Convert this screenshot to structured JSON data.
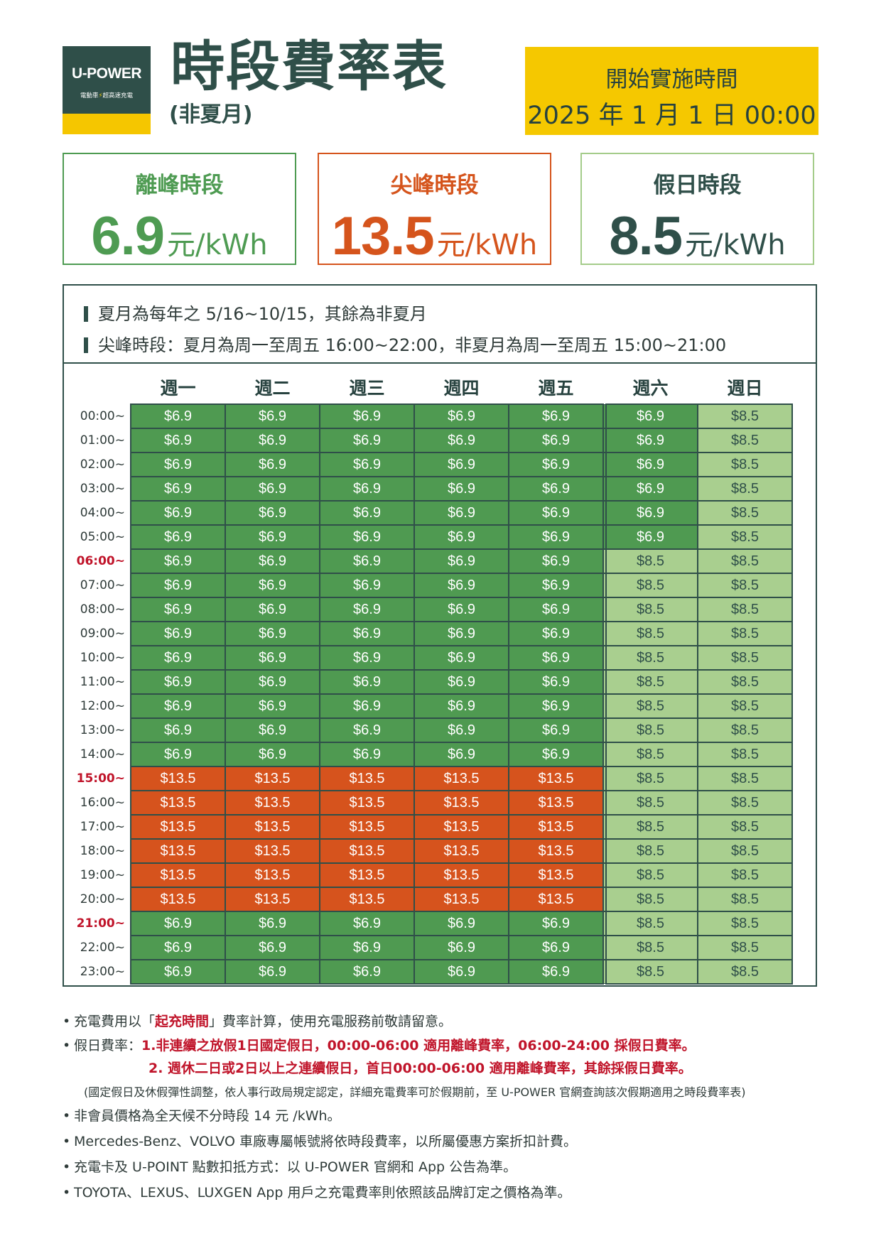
{
  "logo": {
    "name": "U-POWER",
    "tagline_left": "電動車",
    "tagline_right": "超高速充電"
  },
  "header": {
    "title": "時段費率表",
    "subtitle": "(非夏月)"
  },
  "effective": {
    "label": "開始實施時間",
    "date": "2025 年 1 月 1 日 00:00"
  },
  "rates": [
    {
      "label": "離峰時段",
      "value": "6.9",
      "unit": "元/kWh",
      "color": "#4e9b52"
    },
    {
      "label": "尖峰時段",
      "value": "13.5",
      "unit": "元/kWh",
      "color": "#d5541c"
    },
    {
      "label": "假日時段",
      "value": "8.5",
      "unit": "元/kWh",
      "color": "#2f4f49"
    }
  ],
  "notes": [
    "夏月為每年之 5/16~10/15，其餘為非夏月",
    "尖峰時段：夏月為周一至周五 16:00~22:00，非夏月為周一至周五 15:00~21:00"
  ],
  "table": {
    "days": [
      "週一",
      "週二",
      "週三",
      "週四",
      "週五",
      "週六",
      "週日"
    ],
    "hours": [
      "00:00~",
      "01:00~",
      "02:00~",
      "03:00~",
      "04:00~",
      "05:00~",
      "06:00~",
      "07:00~",
      "08:00~",
      "09:00~",
      "10:00~",
      "11:00~",
      "12:00~",
      "13:00~",
      "14:00~",
      "15:00~",
      "16:00~",
      "17:00~",
      "18:00~",
      "19:00~",
      "20:00~",
      "21:00~",
      "22:00~",
      "23:00~"
    ],
    "highlight_hours": [
      "06:00~",
      "15:00~",
      "21:00~"
    ],
    "price_labels": {
      "off": "$6.9",
      "peak": "$13.5",
      "hol": "$8.5"
    },
    "schedule": [
      "ooooooh",
      "ooooooh",
      "ooooooh",
      "ooooooh",
      "ooooooh",
      "ooooooh",
      "ooooohh",
      "ooooohh",
      "ooooohh",
      "ooooohh",
      "ooooohh",
      "ooooohh",
      "ooooohh",
      "ooooohh",
      "ooooohh",
      "ppppphh",
      "ppppphh",
      "ppppphh",
      "ppppphh",
      "ppppphh",
      "ppppphh",
      "ooooohh",
      "ooooohh",
      "ooooohh"
    ],
    "colors": {
      "off": "#4f9a51",
      "peak": "#d6531d",
      "hol": "#a9cf8f"
    }
  },
  "footnotes": {
    "f1_pre": "充電費用以「",
    "f1_red": "起充時間",
    "f1_post": "」費率計算，使用充電服務前敬請留意。",
    "f2_label": "假日費率：",
    "f2_line1": "1.非連續之放假1日國定假日，00:00-06:00 適用離峰費率，06:00-24:00 採假日費率。",
    "f2_line2": "2. 週休二日或2日以上之連續假日，首日00:00-06:00 適用離峰費率，其餘採假日費率。",
    "f3": "(國定假日及休假彈性調整，依人事行政局規定認定，詳細充電費率可於假期前，至 U-POWER 官網查詢該次假期適用之時段費率表)",
    "f4": "非會員價格為全天候不分時段 14 元 /kWh。",
    "f5": "Mercedes-Benz、VOLVO 車廠專屬帳號將依時段費率，以所屬優惠方案折扣計費。",
    "f6": "充電卡及 U-POINT 點數扣抵方式：以 U-POWER 官網和 App 公告為準。",
    "f7": "TOYOTA、LEXUS、LUXGEN App 用戶之充電費率則依照該品牌訂定之價格為準。"
  }
}
